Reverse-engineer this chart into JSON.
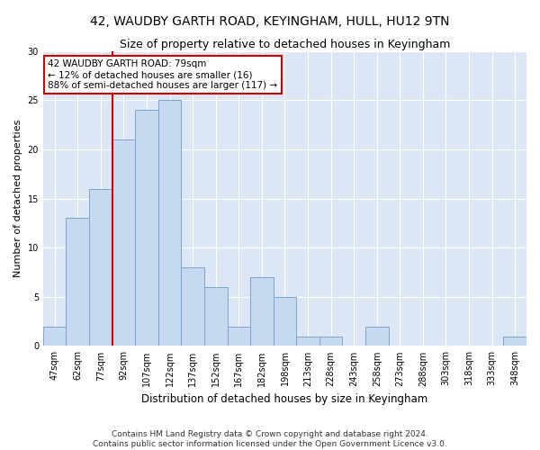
{
  "title": "42, WAUDBY GARTH ROAD, KEYINGHAM, HULL, HU12 9TN",
  "subtitle": "Size of property relative to detached houses in Keyingham",
  "xlabel": "Distribution of detached houses by size in Keyingham",
  "ylabel": "Number of detached properties",
  "categories": [
    "47sqm",
    "62sqm",
    "77sqm",
    "92sqm",
    "107sqm",
    "122sqm",
    "137sqm",
    "152sqm",
    "167sqm",
    "182sqm",
    "198sqm",
    "213sqm",
    "228sqm",
    "243sqm",
    "258sqm",
    "273sqm",
    "288sqm",
    "303sqm",
    "318sqm",
    "333sqm",
    "348sqm"
  ],
  "values": [
    2,
    13,
    16,
    21,
    24,
    25,
    8,
    6,
    2,
    7,
    5,
    1,
    1,
    0,
    2,
    0,
    0,
    0,
    0,
    0,
    1
  ],
  "bar_color": "#c6d9f1",
  "bar_edge_color": "#7aa6cc",
  "vline_color": "#cc0000",
  "vline_pos": 2.5,
  "annotation_text": "42 WAUDBY GARTH ROAD: 79sqm\n← 12% of detached houses are smaller (16)\n88% of semi-detached houses are larger (117) →",
  "annotation_box_facecolor": "white",
  "annotation_box_edgecolor": "#cc0000",
  "ylim": [
    0,
    30
  ],
  "yticks": [
    0,
    5,
    10,
    15,
    20,
    25,
    30
  ],
  "background_color": "#dce6f5",
  "grid_color": "#ffffff",
  "footer_line1": "Contains HM Land Registry data © Crown copyright and database right 2024.",
  "footer_line2": "Contains public sector information licensed under the Open Government Licence v3.0.",
  "title_fontsize": 10,
  "subtitle_fontsize": 9,
  "ylabel_fontsize": 8,
  "xlabel_fontsize": 8.5,
  "tick_fontsize": 7,
  "annotation_fontsize": 7.5,
  "footer_fontsize": 6.5
}
